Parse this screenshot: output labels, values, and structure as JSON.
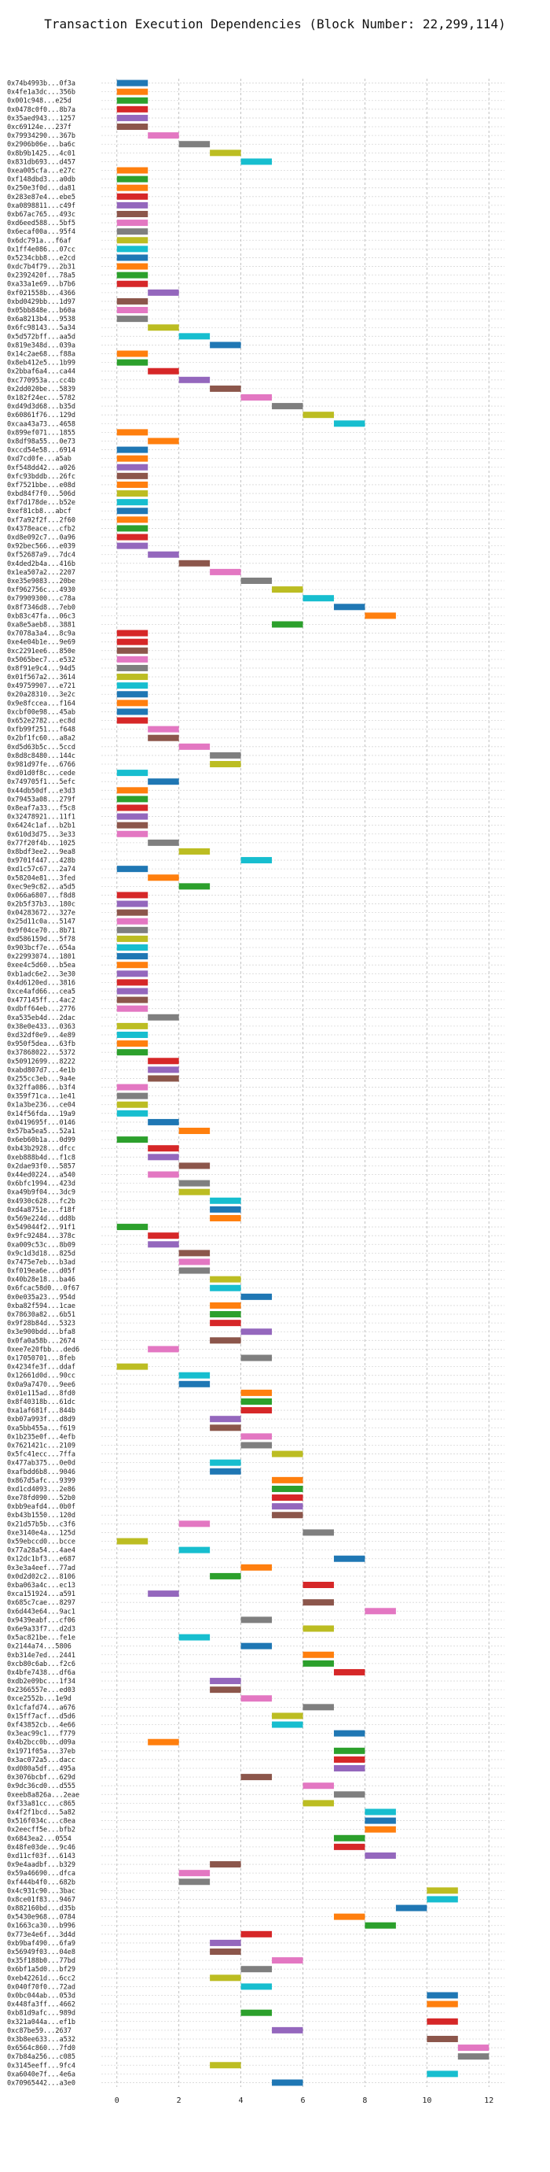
{
  "chart_data": {
    "type": "bar",
    "orientation": "horizontal-gantt",
    "title": "Transaction Execution Dependencies (Block Number: 22,299,114)",
    "xlabel": "",
    "ylabel": "",
    "xlim": [
      -0.5,
      12.5
    ],
    "xticks": [
      0,
      2,
      4,
      6,
      8,
      10,
      12
    ],
    "grid": true,
    "legend": "none",
    "palette": [
      "#1f77b4",
      "#ff7f0e",
      "#2ca02c",
      "#d62728",
      "#9467bd",
      "#8c564b",
      "#e377c2",
      "#7f7f7f",
      "#bcbd22",
      "#17becf"
    ],
    "transactions": [
      "0x74b4993b...0f3a",
      "0x4fe1a3dc...356b",
      "0x001c948...e25d",
      "0x0478c0f0...8b7a",
      "0x35aed943...1257",
      "0xc69124e...237f",
      "0x79934290...367b",
      "0x2906b06e...ba6c",
      "0x8b9b1425...4c01",
      "0x831db693...d457",
      "0xea005cfa...e27c",
      "0xf148dbd3...a0db",
      "0x250e3f0d...da81",
      "0x283e87e4...ebe5",
      "0xa0898811...c49f",
      "0xb67ac765...493c",
      "0xd6eed588...5bf5",
      "0x6ecaf00a...95f4",
      "0x6dc791a...f6af",
      "0x1ff4e086...07cc",
      "0x5234cbb8...e2cd",
      "0xdc7b4f79...2b31",
      "0x2392420f...78a5",
      "0xa33a1e69...b7b6",
      "0xf021558b...4366",
      "0xbd0429bb...1d97",
      "0x05bb848e...b60a",
      "0x6a8213b4...9538",
      "0x6fc98143...5a34",
      "0x5d572bff...aa5d",
      "0x819e348d...039a",
      "0x14c2ae68...f88a",
      "0x8eb412e5...1b99",
      "0x2bbaf6a4...ca44",
      "0xc770953a...cc4b",
      "0x2dd020be...5839",
      "0x182f24ec...5782",
      "0xd49d3d68...b35d",
      "0x60861f76...129d",
      "0xcaa43a73...4658",
      "0x899ef071...1855",
      "0x8df98a55...0e73",
      "0xccd54e58...6914",
      "0xd7cd0fe...a5ab",
      "0xf548dd42...a026",
      "0xfc93bddb...26fc",
      "0xf7521bbe...e08d",
      "0xbd84f7f0...506d",
      "0xf7d178de...b52e",
      "0xef81cb8...abcf",
      "0xf7a92f2f...2f60",
      "0x4378eace...cfb2",
      "0xd8e092c7...0a96",
      "0x92bec566...e039",
      "0xf52687a9...7dc4",
      "0x4ded2b4a...416b",
      "0x1ea507a2...2207",
      "0xe35e9083...20be",
      "0xf962756c...4930",
      "0x79909300...c78a",
      "0x8f7346d8...7eb0",
      "0xb83c47fa...06c3",
      "0xa8e5aeb8...3881",
      "0x7078a3a4...8c9a",
      "0xe4e04b1e...9e69",
      "0xc2291ee6...850e",
      "0x5065bec7...e532",
      "0x8f91e9c4...94d5",
      "0x01f567a2...3614",
      "0x49759907...e721",
      "0x20a28310...3e2c",
      "0x9e8fccea...f164",
      "0xcbf00e98...45ab",
      "0x652e2782...ec8d",
      "0xfb99f251...f648",
      "0x2bf1fc60...a8a2",
      "0xd5d63b5c...5ccd",
      "0x8d8c8480...144c",
      "0x981d97fe...6766",
      "0xd01d0f8c...cede",
      "0x749705f1...5efc",
      "0x44db50df...e3d3",
      "0x79453a08...279f",
      "0x8eaf7a33...f5c8",
      "0x32478921...11f1",
      "0x6424c1af...b2b1",
      "0x610d3d75...3e33",
      "0x77f20f4b...1025",
      "0x8bdf3ee2...9ea8",
      "0x9701f447...428b",
      "0xd1c57c67...2a74",
      "0x58204e81...3fed",
      "0xec9e9c82...a5d5",
      "0x066a6807...f8d8",
      "0x2b5f37b3...180c",
      "0x04283672...327e",
      "0x25d11c0a...5147",
      "0x9f04ce70...8b71",
      "0xd586159d...5f78",
      "0x903bcf7e...654a",
      "0x22993074...1801",
      "0xee4c5d60...b5ea",
      "0xb1adc6e2...3e30",
      "0x4d6120ed...3816",
      "0xce4afd66...cea5",
      "0x477145ff...4ac2",
      "0xdbff64eb...2776",
      "0xa535eb4d...2dac",
      "0x38e0e433...0363",
      "0xd32df0e9...4e89",
      "0x950f5dea...63fb",
      "0x37868022...5372",
      "0x50912699...8222",
      "0xabd807d7...4e1b",
      "0x255cc3eb...9a4e",
      "0x32ffa086...b3f4",
      "0x359f71ca...1e41",
      "0x1a3be236...ce04",
      "0x14f56fda...19a9",
      "0x0419695f...0146",
      "0x57ba5ea5...52a1",
      "0x6eb60b1a...0d99",
      "0xb43b2928...dfcc",
      "0xeb888b4d...f1c8",
      "0x2dae93f0...5857",
      "0x44ed0224...a540",
      "0x6bfc1994...423d",
      "0xa49b9f04...3dc9",
      "0x4930c628...fc2b",
      "0xd4a8751e...f18f",
      "0x569e224d...dd8b",
      "0x549044f2...91f1",
      "0x9fc92484...378c",
      "0xa009c53c...8b09",
      "0x9c1d3d18...825d",
      "0x7475e7eb...b3ad",
      "0xf019ea6e...d05f",
      "0x40b28e18...ba46",
      "0x6fcac58d0...0f67",
      "0x0e035a23...954d",
      "0xba82f594...1cae",
      "0x78630a82...6b51",
      "0x9f28b84d...5323",
      "0x3e900bdd...bfa8",
      "0x0fa0a58b...2674",
      "0xee7e20fbb...ded6",
      "0x17050701...8feb",
      "0x4234fe3f...ddaf",
      "0x12661d0d...90cc",
      "0x0a9a7470...9ee6",
      "0x01e115ad...8fd0",
      "0x8f40318b...61dc",
      "0xa1af681f...844b",
      "0xb07a993f...d8d9",
      "0xa5bb455a...f619",
      "0x1b235e0f...4efb",
      "0x7621421c...2109",
      "0x5fc41ecc...7ffa",
      "0x477ab375...0e0d",
      "0xafbdd6b8...9046",
      "0x867d5afc...9399",
      "0xd1cd4093...2e86",
      "0xe78fd090...52b0",
      "0xbb9eafd4...0b0f",
      "0xb43b1550...120d",
      "0x21d57b5b...c3f6",
      "0xe3140e4a...125d",
      "0x59ebccd0...bcce",
      "0x77a28a54...4ae4",
      "0x12dc1bf3...e687",
      "0x3e3a4eef...77ad",
      "0x0d2d02c2...8106",
      "0xba063a4c...ec13",
      "0xca151924...a591",
      "0x685c7cae...8297",
      "0x6d443e64...9ac1",
      "0x9439eabf...cf06",
      "0x6e9a33f7...d2d3",
      "0x5ac821be...fe1e",
      "0x2144a74...5806",
      "0xb314e7ed...2441",
      "0xcb80c6ab...f2c6",
      "0x4bfe7438...df6a",
      "0xdb2e09bc...1f34",
      "0x2366557e...ed03",
      "0xce2552b...1e9d",
      "0x1cfafd74...a676",
      "0x15ff7acf...d5d6",
      "0xf43852cb...4e66",
      "0x3eac99c1...f779",
      "0x4b2bcc0b...d09a",
      "0x1971f05a...37eb",
      "0x3ac072a5...dacc",
      "0xd080a5df...495a",
      "0x3076bcbf...629d",
      "0x9dc36cd0...d555",
      "0xeeb8a826a...2eae",
      "0xf33a81cc...c865",
      "0x4f2f1bcd...5a82",
      "0x516f034c...c8ea",
      "0x2eecff5e...bfb2",
      "0x6843ea2...0554",
      "0x48fe03de...9c46",
      "0xd11cf03f...6143",
      "0x9e4aadbf...b329",
      "0x59a46690...dfca",
      "0xf444b4f0...682b",
      "0x4c931c90...3bac",
      "0x8ce01f83...9467",
      "0x882160bd...d35b",
      "0x5430e968...0784",
      "0x1663ca30...b996",
      "0x773e4e6f...3d4d",
      "0xb9baf490...6fa9",
      "0x56949f03...04e8",
      "0x35f188b0...77bd",
      "0x6bf1a5d0...bf29",
      "0xeb42261d...6cc2",
      "0x040f70f0...72ad",
      "0x0bc044ab...053d",
      "0x448fa3ff...4662",
      "0xb81d9afc...989d",
      "0x321a044a...ef1b",
      "0xc87be59...2637",
      "0x3b8ee633...a532",
      "0x6564c860...7fd0",
      "0x7b84a256...c085",
      "0x3145eeff...9fc4",
      "0xa6040e7f...4e6a",
      "0x70965442...a3e0"
    ],
    "x_start": [
      0,
      0,
      0,
      0,
      0,
      0,
      1,
      2,
      3,
      4,
      0,
      0,
      0,
      0,
      0,
      0,
      0,
      0,
      0,
      0,
      0,
      0,
      0,
      0,
      1,
      0,
      0,
      0,
      1,
      2,
      3,
      0,
      0,
      1,
      2,
      3,
      4,
      5,
      6,
      7,
      0,
      1,
      0,
      0,
      0,
      0,
      0,
      0,
      0,
      0,
      0,
      0,
      0,
      0,
      1,
      2,
      3,
      4,
      5,
      6,
      7,
      8,
      5,
      0,
      0,
      0,
      0,
      0,
      0,
      0,
      0,
      0,
      0,
      0,
      1,
      1,
      2,
      3,
      3,
      0,
      1,
      0,
      0,
      0,
      0,
      0,
      0,
      1,
      2,
      4,
      0,
      1,
      2,
      0,
      0,
      0,
      0,
      0,
      0,
      0,
      0,
      0,
      0,
      0,
      0,
      0,
      0,
      1,
      0,
      0,
      0,
      0,
      1,
      1,
      1,
      0,
      0,
      0,
      0,
      1,
      2,
      0,
      1,
      1,
      2,
      1,
      2,
      2,
      3,
      3,
      3,
      0,
      1,
      1,
      2,
      2,
      2,
      3,
      3,
      4,
      3,
      3,
      3,
      4,
      3,
      1,
      4,
      0,
      2,
      2,
      4,
      4,
      4,
      3,
      3,
      4,
      4,
      5,
      3,
      3,
      5,
      5,
      5,
      5,
      5,
      2,
      6,
      0,
      2,
      7,
      4,
      3,
      6,
      1,
      6,
      8,
      4,
      6,
      2,
      4,
      6,
      6,
      7,
      3,
      3,
      4,
      6,
      5,
      5,
      7,
      1,
      7,
      7,
      7,
      4,
      6,
      7,
      6,
      8,
      8,
      8,
      7,
      7,
      8,
      3,
      2,
      2,
      10,
      10,
      9,
      7,
      8,
      4,
      3,
      3,
      5,
      4,
      3,
      4,
      10,
      10,
      4,
      10,
      5,
      10,
      11,
      11,
      3,
      10,
      5
    ],
    "duration": 1,
    "color_index": [
      0,
      1,
      2,
      3,
      4,
      5,
      6,
      7,
      8,
      9,
      1,
      2,
      1,
      3,
      4,
      5,
      6,
      7,
      8,
      9,
      0,
      1,
      2,
      3,
      4,
      5,
      6,
      7,
      8,
      9,
      0,
      1,
      2,
      3,
      4,
      5,
      6,
      7,
      8,
      9,
      1,
      1,
      0,
      1,
      4,
      5,
      1,
      8,
      9,
      0,
      1,
      2,
      3,
      4,
      4,
      5,
      6,
      7,
      8,
      9,
      0,
      1,
      2,
      3,
      3,
      5,
      6,
      7,
      8,
      9,
      0,
      1,
      0,
      3,
      6,
      5,
      6,
      7,
      8,
      9,
      0,
      1,
      2,
      3,
      4,
      5,
      6,
      7,
      8,
      9,
      0,
      1,
      2,
      3,
      4,
      5,
      6,
      7,
      8,
      9,
      0,
      1,
      4,
      3,
      4,
      5,
      6,
      7,
      8,
      9,
      1,
      2,
      3,
      4,
      5,
      6,
      7,
      8,
      9,
      0,
      1,
      2,
      3,
      4,
      5,
      6,
      7,
      8,
      9,
      0,
      1,
      2,
      3,
      4,
      5,
      6,
      7,
      8,
      9,
      0,
      1,
      2,
      3,
      4,
      5,
      6,
      7,
      8,
      9,
      0,
      1,
      2,
      3,
      4,
      5,
      6,
      7,
      8,
      9,
      0,
      1,
      2,
      3,
      4,
      5,
      6,
      7,
      8,
      9,
      0,
      1,
      2,
      3,
      4,
      5,
      6,
      7,
      8,
      9,
      0,
      1,
      2,
      3,
      4,
      5,
      6,
      7,
      8,
      9,
      0,
      1,
      2,
      3,
      4,
      5,
      6,
      7,
      8,
      9,
      0,
      1,
      2,
      3,
      4,
      5,
      6,
      7,
      8,
      9,
      0,
      1,
      2,
      3,
      4,
      5,
      6,
      7,
      8,
      9,
      0,
      1,
      2,
      3,
      4,
      5,
      6,
      7,
      8,
      9,
      0
    ]
  }
}
